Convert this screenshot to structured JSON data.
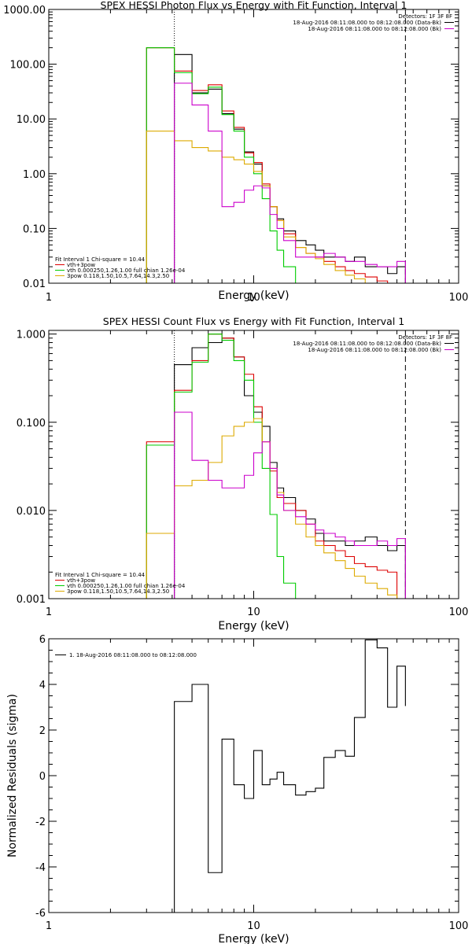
{
  "chart_data": [
    {
      "type": "line",
      "title": "SPEX HESSI Photon Flux vs Energy with Fit Function, Interval 1",
      "xlabel": "Energy (keV)",
      "ylabel": "",
      "xscale": "log",
      "yscale": "log",
      "xlim": [
        1,
        100
      ],
      "ylim": [
        0.01,
        1000
      ],
      "x_ticks": [
        "1",
        "10",
        "100"
      ],
      "y_ticks": [
        "0.01",
        "0.10",
        "1.00",
        "10.00",
        "100.00",
        "1000.00"
      ],
      "vlines": [
        {
          "x": 4.1,
          "style": "dotted"
        },
        {
          "x": 55,
          "style": "dashed"
        }
      ],
      "legend_top": {
        "header": "Detectors: 1F 3F 8F",
        "lines": [
          {
            "text": "18-Aug-2016 08:11:08.000 to 08:12:08.000 (Data-Bk)",
            "color": "#000000"
          },
          {
            "text": "18-Aug-2016 08:11:08.000 to 08:12:08.000 (Bk)",
            "color": "#cc00cc"
          }
        ]
      },
      "legend_bottom": {
        "header": "Fit Interval 1    Chi-square = 10.44",
        "lines": [
          {
            "text": "vth+3pow",
            "color": "#dd0000"
          },
          {
            "text": "vth 0.000250,1.26,1.00  full chian 1.26e-04",
            "color": "#00cc00"
          },
          {
            "text": "3pow 0.118,1.50,10.5,7.64,14.3,2.50",
            "color": "#ddaa00"
          }
        ]
      },
      "edges": [
        3,
        4.1,
        5,
        6,
        7,
        8,
        9,
        10,
        11,
        12,
        13,
        14,
        16,
        18,
        20,
        22,
        25,
        28,
        31,
        35,
        40,
        45,
        50,
        55
      ],
      "series": [
        {
          "name": "Data-Bk",
          "color": "#000000",
          "values": [
            null,
            150,
            30,
            35,
            12.5,
            6.5,
            2.5,
            1.5,
            0.6,
            0.25,
            0.15,
            0.09,
            0.06,
            0.05,
            0.04,
            0.03,
            0.03,
            0.025,
            0.03,
            0.02,
            0.02,
            0.015,
            0.02
          ]
        },
        {
          "name": "vth+3pow",
          "color": "#dd0000",
          "values": [
            200,
            75,
            33,
            42,
            14,
            7,
            2.4,
            1.6,
            0.65,
            0.25,
            0.14,
            0.08,
            0.045,
            0.035,
            0.03,
            0.025,
            0.02,
            0.017,
            0.015,
            0.013,
            0.011,
            0.01,
            null
          ]
        },
        {
          "name": "vth",
          "color": "#00cc00",
          "values": [
            200,
            70,
            29,
            38,
            12,
            6,
            2,
            1,
            0.35,
            0.09,
            0.04,
            0.02,
            0.01,
            null,
            null,
            null,
            null,
            null,
            null,
            null,
            null,
            null,
            null
          ]
        },
        {
          "name": "3pow",
          "color": "#ddaa00",
          "values": [
            6,
            4,
            3,
            2.6,
            2,
            1.8,
            1.5,
            1.1,
            0.6,
            0.25,
            0.14,
            0.07,
            0.045,
            0.035,
            0.028,
            0.022,
            0.017,
            0.014,
            0.012,
            0.01,
            null,
            null,
            null
          ]
        },
        {
          "name": "Bk",
          "color": "#cc00cc",
          "values": [
            null,
            45,
            18,
            6,
            0.25,
            0.3,
            0.5,
            0.6,
            0.55,
            0.18,
            0.1,
            0.06,
            0.03,
            0.03,
            0.03,
            0.035,
            0.03,
            0.025,
            0.025,
            0.022,
            0.02,
            0.02,
            0.025
          ]
        }
      ]
    },
    {
      "type": "line",
      "title": "SPEX HESSI Count Flux vs Energy with Fit Function, Interval 1",
      "xlabel": "Energy (keV)",
      "ylabel": "",
      "xscale": "log",
      "yscale": "log",
      "xlim": [
        1,
        100
      ],
      "ylim": [
        0.001,
        1.1
      ],
      "x_ticks": [
        "1",
        "10",
        "100"
      ],
      "y_ticks": [
        "0.001",
        "0.010",
        "0.100",
        "1.000"
      ],
      "vlines": [
        {
          "x": 4.1,
          "style": "dotted"
        },
        {
          "x": 55,
          "style": "dashed"
        }
      ],
      "legend_top": {
        "header": "Detectors: 1F 3F 8F",
        "lines": [
          {
            "text": "18-Aug-2016 08:11:08.000 to 08:12:08.000 (Data-Bk)",
            "color": "#000000"
          },
          {
            "text": "18-Aug-2016 08:11:08.000 to 08:12:08.000 (Bk)",
            "color": "#cc00cc"
          }
        ]
      },
      "legend_bottom": {
        "header": "Fit Interval 1    Chi-square = 10.44",
        "lines": [
          {
            "text": "vth+3pow",
            "color": "#dd0000"
          },
          {
            "text": "vth 0.000250,1.26,1.00  full chian 1.26e-04",
            "color": "#00cc00"
          },
          {
            "text": "3pow 0.118,1.50,10.5,7.64,14.3,2.50",
            "color": "#ddaa00"
          }
        ]
      },
      "edges": [
        3,
        4.1,
        5,
        6,
        7,
        8,
        9,
        10,
        11,
        12,
        13,
        14,
        16,
        18,
        20,
        22,
        25,
        28,
        31,
        35,
        40,
        45,
        50,
        55
      ],
      "series": [
        {
          "name": "Data-Bk",
          "color": "#000000",
          "values": [
            null,
            0.45,
            0.7,
            0.8,
            0.9,
            0.55,
            0.2,
            0.13,
            0.09,
            0.035,
            0.018,
            0.014,
            0.01,
            0.008,
            0.0055,
            0.0045,
            0.0045,
            0.004,
            0.0045,
            0.005,
            0.004,
            0.0035,
            0.004
          ]
        },
        {
          "name": "vth+3pow",
          "color": "#dd0000",
          "values": [
            0.06,
            0.23,
            0.5,
            1.0,
            0.9,
            0.55,
            0.35,
            0.15,
            0.06,
            0.028,
            0.014,
            0.012,
            0.01,
            0.007,
            0.0045,
            0.004,
            0.0035,
            0.003,
            0.0025,
            0.0023,
            0.0021,
            0.002,
            null
          ]
        },
        {
          "name": "vth",
          "color": "#00cc00",
          "values": [
            0.055,
            0.22,
            0.48,
            1.0,
            0.85,
            0.5,
            0.3,
            0.1,
            0.03,
            0.009,
            0.003,
            0.0015,
            0.001,
            null,
            null,
            null,
            null,
            null,
            null,
            null,
            null,
            null,
            null
          ]
        },
        {
          "name": "3pow",
          "color": "#ddaa00",
          "values": [
            0.0055,
            0.019,
            0.022,
            0.035,
            0.07,
            0.09,
            0.1,
            0.11,
            0.06,
            0.03,
            0.016,
            0.01,
            0.007,
            0.005,
            0.004,
            0.0033,
            0.0027,
            0.0022,
            0.0018,
            0.0015,
            0.0013,
            0.0011,
            null
          ]
        },
        {
          "name": "Bk",
          "color": "#cc00cc",
          "values": [
            null,
            0.13,
            0.037,
            0.022,
            0.018,
            0.018,
            0.025,
            0.045,
            0.06,
            0.03,
            0.015,
            0.01,
            0.0085,
            0.007,
            0.006,
            0.0055,
            0.005,
            0.0045,
            0.004,
            0.004,
            0.0045,
            0.004,
            0.0048
          ]
        }
      ]
    },
    {
      "type": "line",
      "title": "",
      "xlabel": "Energy (keV)",
      "ylabel": "Normalized Residuals (sigma)",
      "xscale": "log",
      "yscale": "linear",
      "xlim": [
        1,
        100
      ],
      "ylim": [
        -6,
        6
      ],
      "x_ticks": [
        "1",
        "10",
        "100"
      ],
      "y_ticks": [
        "-6",
        "-4",
        "-2",
        "0",
        "2",
        "4",
        "6"
      ],
      "legend_top": {
        "header": "",
        "lines": [
          {
            "text": "1. 18-Aug-2016 08:11:08.000 to 08:12:08.000",
            "color": "#000000"
          }
        ]
      },
      "edges": [
        4.1,
        5,
        6,
        7,
        8,
        9,
        10,
        11,
        12,
        13,
        14,
        16,
        18,
        20,
        22,
        25,
        28,
        31,
        35,
        40,
        45,
        50,
        55
      ],
      "series": [
        {
          "name": "1",
          "color": "#000000",
          "values": [
            3.25,
            4.0,
            -4.25,
            1.6,
            -0.4,
            -1.0,
            1.1,
            -0.4,
            -0.15,
            0.15,
            -0.4,
            -0.85,
            -0.7,
            -0.55,
            0.8,
            1.1,
            0.85,
            2.55,
            5.95,
            5.6,
            3.0,
            4.8,
            3.05
          ]
        }
      ]
    }
  ]
}
